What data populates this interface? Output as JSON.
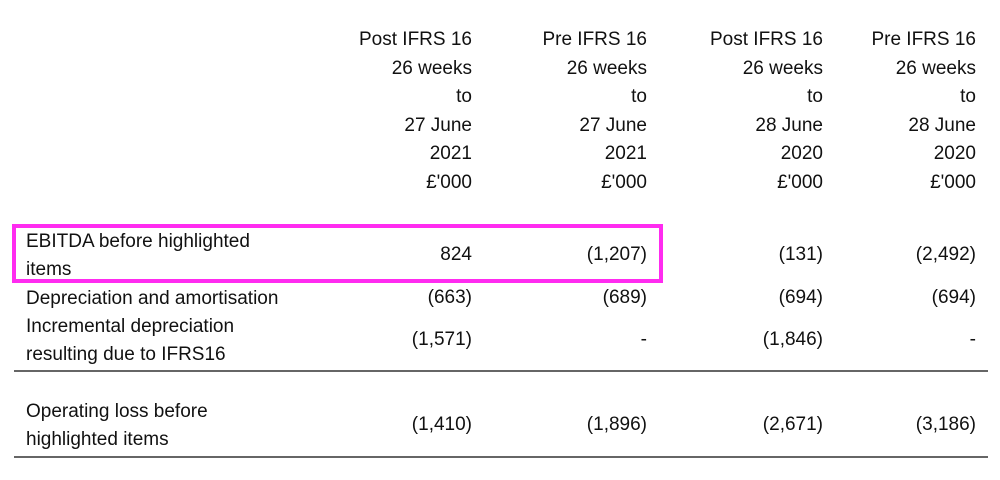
{
  "columns": [
    {
      "type": "Post IFRS 16",
      "period": "26 weeks",
      "to": "to",
      "date": "27 June",
      "year": "2021",
      "unit": "£'000"
    },
    {
      "type": "Pre IFRS 16",
      "period": "26 weeks",
      "to": "to",
      "date": "27 June",
      "year": "2021",
      "unit": "£'000"
    },
    {
      "type": "Post IFRS 16",
      "period": "26 weeks",
      "to": "to",
      "date": "28 June",
      "year": "2020",
      "unit": "£'000"
    },
    {
      "type": "Pre IFRS 16",
      "period": "26 weeks",
      "to": "to",
      "date": "28 June",
      "year": "2020",
      "unit": "£'000"
    }
  ],
  "rows": [
    {
      "label_line1": "EBITDA before highlighted",
      "label_line2": "items",
      "values": [
        "824",
        "(1,207)",
        "(131)",
        "(2,492)"
      ]
    },
    {
      "label_line1": "Depreciation and amortisation",
      "values": [
        "(663)",
        "(689)",
        "(694)",
        "(694)"
      ]
    },
    {
      "label_line1": "Incremental depreciation",
      "label_line2": "resulting due to IFRS16",
      "values": [
        "(1,571)",
        "-",
        "(1,846)",
        "-"
      ]
    },
    {
      "label_line1": "Operating loss before",
      "label_line2": "highlighted items",
      "values": [
        "(1,410)",
        "(1,896)",
        "(2,671)",
        "(3,186)"
      ]
    }
  ],
  "highlight_color": "#ff2bf0"
}
